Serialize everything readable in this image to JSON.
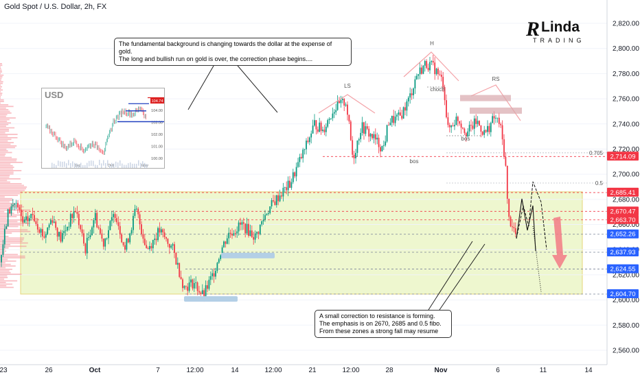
{
  "header": {
    "title": "Gold Spot / U.S. Dollar, 2h, FX"
  },
  "logo": {
    "text": "Linda",
    "sub": "TRADING"
  },
  "callouts": {
    "top": [
      "The fundamental background is changing towards the dollar at the expense of gold.",
      "The long and bullish run on gold is over, the correction phase begins...."
    ],
    "bottom": [
      "A small correction to resistance is forming.",
      "The emphasis is on 2670, 2685 and 0.5 fibo.",
      "From these zones a strong fall may resume"
    ]
  },
  "colors": {
    "up": "#089981",
    "down": "#f23645",
    "support": "#b3cfe6",
    "zone": "#eef7cf",
    "zone_border": "#e6d57a",
    "blue_tag": "#2962ff",
    "red_tag": "#f23645"
  },
  "chart_data": {
    "type": "candlestick",
    "title": "Gold Spot / U.S. Dollar, 2h, FX",
    "y_ticks": [
      2560,
      2580,
      2600,
      2620,
      2640,
      2660,
      2680,
      2700,
      2720,
      2740,
      2760,
      2780,
      2800,
      2820
    ],
    "ylim": [
      2552,
      2826
    ],
    "x_ticks": [
      "23",
      "26",
      "Oct",
      "7",
      "12:00",
      "14",
      "12:00",
      "21",
      "12:00",
      "28",
      "Nov",
      "6",
      "11",
      "14"
    ],
    "price_tags": [
      {
        "value": 2714.09,
        "label": "2,714.09",
        "color": "red"
      },
      {
        "value": 2685.41,
        "label": "2,685.41",
        "color": "red"
      },
      {
        "value": 2670.47,
        "label": "2,670.47",
        "color": "red"
      },
      {
        "value": 2663.7,
        "label": "2,663.70",
        "color": "red"
      },
      {
        "value": 2652.26,
        "label": "2,652.26",
        "color": "blue"
      },
      {
        "value": 2637.93,
        "label": "2,637.93",
        "color": "blue"
      },
      {
        "value": 2624.55,
        "label": "2,624.55",
        "color": "blue"
      },
      {
        "value": 2604.7,
        "label": "2,604.70",
        "color": "blue"
      }
    ],
    "fib_levels": [
      {
        "label": "0.705",
        "value": 2717
      },
      {
        "label": "0.5",
        "value": 2693
      }
    ],
    "pattern_labels": [
      "LS",
      "H",
      "RS"
    ],
    "structure_labels": [
      "choch",
      "bos",
      "bos"
    ],
    "inset": {
      "title": "USD",
      "y_ticks": [
        "100.00",
        "101.00",
        "102.00",
        "103.00",
        "104.00"
      ],
      "x_ticks": [
        "Sep",
        "Oct",
        "Nov"
      ],
      "last_tag": "104.74"
    }
  }
}
